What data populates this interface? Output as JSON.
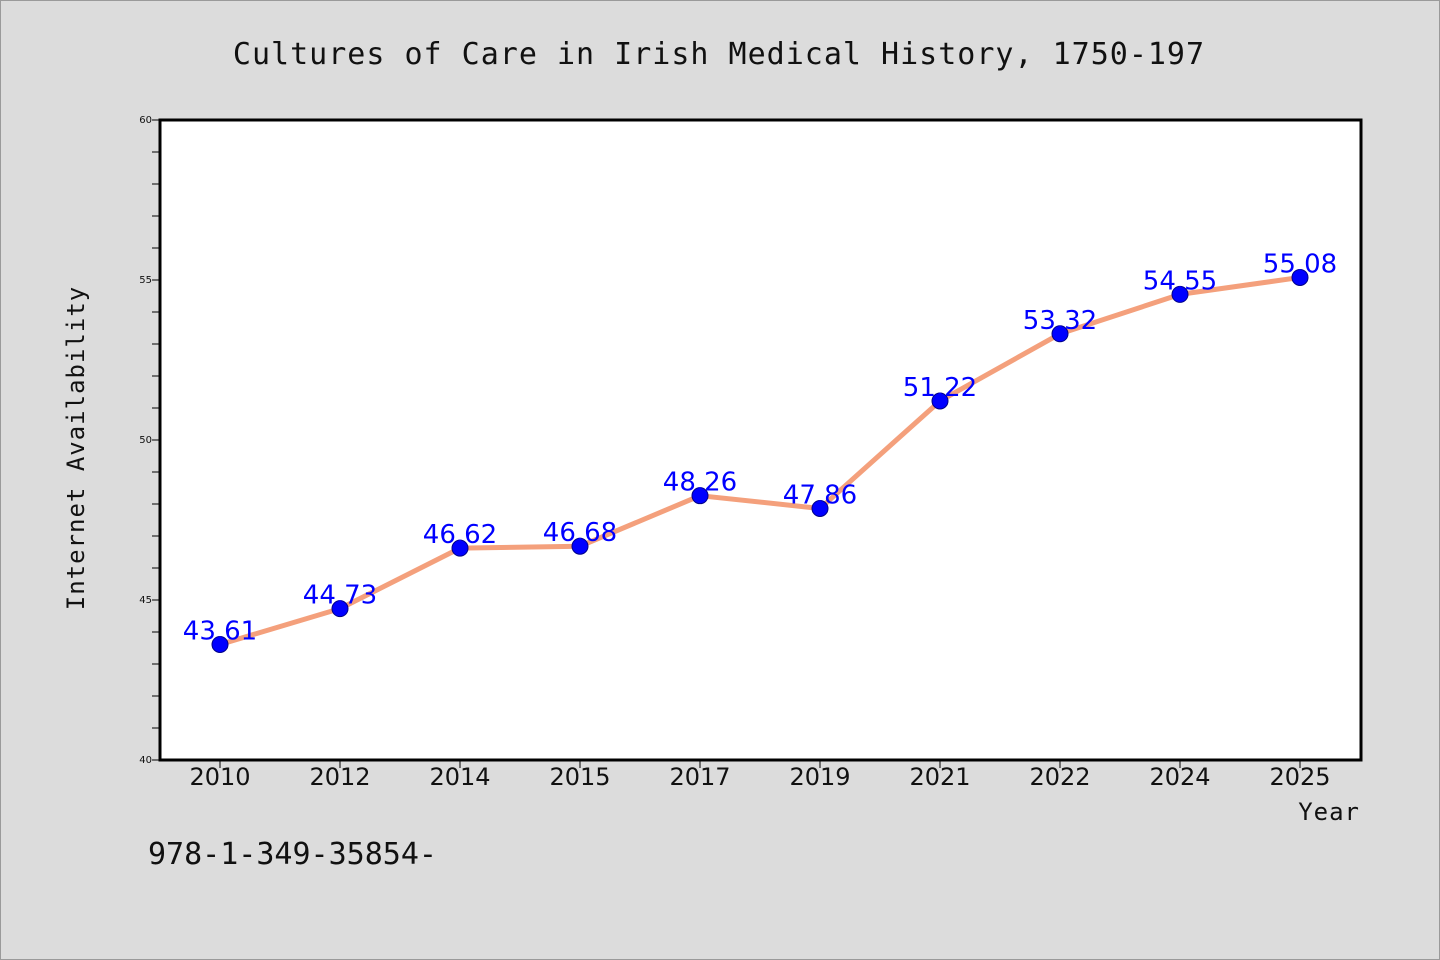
{
  "chart_data": {
    "type": "line",
    "title": "Cultures of Care in Irish Medical History, 1750-197",
    "xlabel": "Year",
    "ylabel": "Internet Availability",
    "categories": [
      "2010",
      "2012",
      "2014",
      "2015",
      "2017",
      "2019",
      "2021",
      "2022",
      "2024",
      "2025"
    ],
    "series": [
      {
        "values": [
          43.61,
          44.73,
          46.62,
          46.68,
          48.26,
          47.86,
          51.22,
          53.32,
          54.55,
          55.08
        ],
        "labels": [
          "43.61",
          "44.73",
          "46.62",
          "46.68",
          "48.26",
          "47.86",
          "51.22",
          "53.32",
          "54.55",
          "55.08"
        ]
      }
    ],
    "ylim": [
      40,
      60
    ],
    "yticks": [
      "40",
      "45",
      "50",
      "55",
      "60"
    ],
    "grid": false,
    "line_color": "#f4a07c",
    "marker_color": "#0000ff",
    "label_color": "#0000ff"
  },
  "footer": {
    "text": "978-1-349-35854-"
  }
}
